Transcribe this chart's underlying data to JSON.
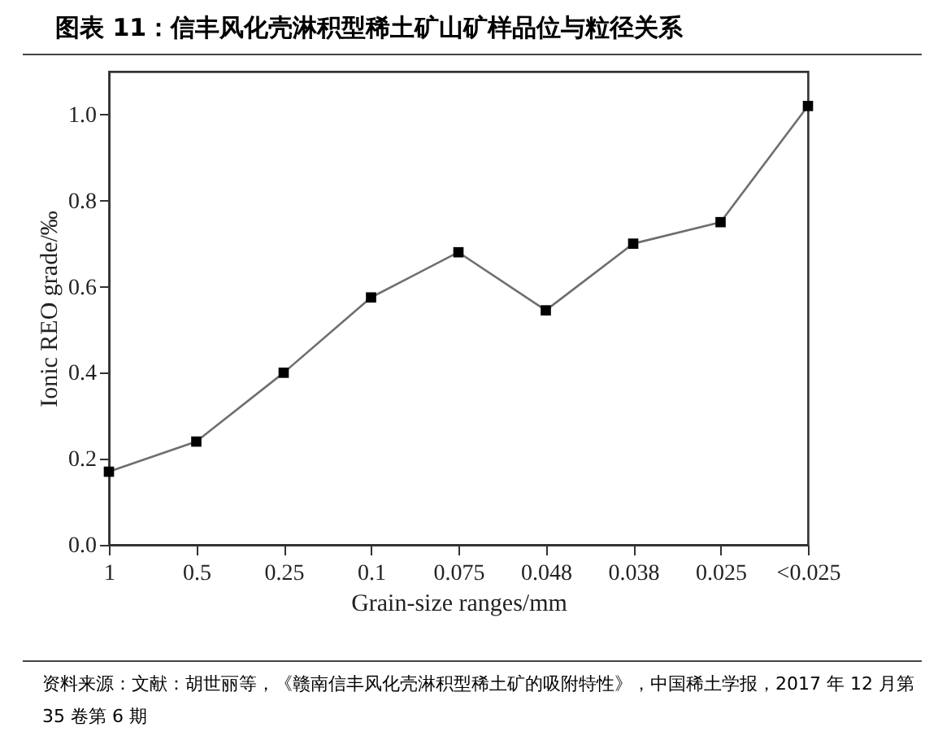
{
  "chart_data": {
    "type": "line",
    "title": "图表 11：信丰风化壳淋积型稀土矿山矿样品位与粒径关系",
    "xlabel": "Grain-size ranges/mm",
    "ylabel": "Ionic REO grade/‰",
    "categories": [
      "1",
      "0.5",
      "0.25",
      "0.1",
      "0.075",
      "0.048",
      "0.038",
      "0.025",
      "<0.025"
    ],
    "series": [
      {
        "color": "#6e6e6e",
        "values": [
          0.17,
          0.24,
          0.4,
          0.575,
          0.68,
          0.545,
          0.7,
          0.75,
          1.02
        ]
      }
    ],
    "ylim": [
      0,
      1.1
    ],
    "yticks": [
      {
        "value": 0,
        "label": "0.0"
      },
      0.2,
      0.4,
      0.6,
      0.8,
      {
        "value": 1,
        "label": "1.0"
      }
    ],
    "marker": "square",
    "line_style": "solid",
    "annotations": [
      "资料来源：文献：胡世丽等，《赣南信丰风化壳淋积型稀土矿的吸附特性》，中国稀土学报，2017 年 12 月第 35 卷第 6 期"
    ]
  }
}
